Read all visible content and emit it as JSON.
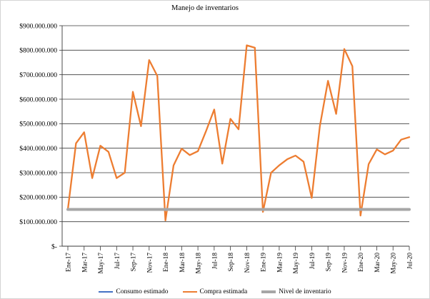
{
  "chart_data": {
    "type": "line",
    "title": "Manejo de inventarios",
    "xlabel": "",
    "ylabel": "",
    "ylim": [
      0,
      900000000
    ],
    "grid": "horizontal",
    "legend_position": "bottom",
    "x": [
      "Ene-17",
      "Feb-17",
      "Mar-17",
      "Abr-17",
      "May-17",
      "Jun-17",
      "Jul-17",
      "Ago-17",
      "Sep-17",
      "Oct-17",
      "Nov-17",
      "Dic-17",
      "Ene-18",
      "Feb-18",
      "Mar-18",
      "Abr-18",
      "May-18",
      "Jun-18",
      "Jul-18",
      "Ago-18",
      "Sep-18",
      "Oct-18",
      "Nov-18",
      "Dic-18",
      "Ene-19",
      "Feb-19",
      "Mar-19",
      "Abr-19",
      "May-19",
      "Jun-19",
      "Jul-19",
      "Ago-19",
      "Sep-19",
      "Oct-19",
      "Nov-19",
      "Dic-19",
      "Ene-20",
      "Feb-20",
      "Mar-20",
      "Abr-20",
      "May-20",
      "Jun-20",
      "Jul-20"
    ],
    "x_tick_labels": [
      "Ene-17",
      "Mar-17",
      "May-17",
      "Jul-17",
      "Sep-17",
      "Nov-17",
      "Ene-18",
      "Mar-18",
      "May-18",
      "Jul-18",
      "Sep-18",
      "Nov-18",
      "Ene-19",
      "Mar-19",
      "May-19",
      "Jul-19",
      "Sep-19",
      "Nov-19",
      "Ene-20",
      "Mar-20",
      "May-20",
      "Jul-20"
    ],
    "y_ticks": [
      {
        "label": "$900.000.000",
        "value": 900000000
      },
      {
        "label": "$800.000.000",
        "value": 800000000
      },
      {
        "label": "$700.000.000",
        "value": 700000000
      },
      {
        "label": "$600.000.000",
        "value": 600000000
      },
      {
        "label": "$500.000.000",
        "value": 500000000
      },
      {
        "label": "$400.000.000",
        "value": 400000000
      },
      {
        "label": "$300.000.000",
        "value": 300000000
      },
      {
        "label": "$200.000.000",
        "value": 200000000
      },
      {
        "label": "$100.000.000",
        "value": 100000000
      },
      {
        "label": "$-",
        "value": 0
      }
    ],
    "series": [
      {
        "name": "Consumo estimado",
        "color": "#4472C4",
        "width": 2,
        "values": [
          150000000,
          150000000,
          150000000,
          150000000,
          150000000,
          150000000,
          150000000,
          150000000,
          150000000,
          150000000,
          150000000,
          150000000,
          150000000,
          150000000,
          150000000,
          150000000,
          150000000,
          150000000,
          150000000,
          150000000,
          150000000,
          150000000,
          150000000,
          150000000,
          150000000,
          150000000,
          150000000,
          150000000,
          150000000,
          150000000,
          150000000,
          150000000,
          150000000,
          150000000,
          150000000,
          150000000,
          150000000,
          150000000,
          150000000,
          150000000,
          150000000,
          150000000,
          150000000
        ]
      },
      {
        "name": "Compra estimada",
        "color": "#ED7D31",
        "width": 2.3,
        "values": [
          150000000,
          420000000,
          465000000,
          278000000,
          410000000,
          385000000,
          278000000,
          300000000,
          630000000,
          490000000,
          760000000,
          695000000,
          105000000,
          330000000,
          398000000,
          372000000,
          388000000,
          470000000,
          558000000,
          337000000,
          520000000,
          477000000,
          820000000,
          810000000,
          140000000,
          300000000,
          330000000,
          355000000,
          370000000,
          345000000,
          197000000,
          490000000,
          675000000,
          540000000,
          805000000,
          735000000,
          125000000,
          335000000,
          395000000,
          375000000,
          390000000,
          435000000,
          445000000
        ]
      },
      {
        "name": "Nivel de inventario",
        "color": "#A6A6A6",
        "width": 4,
        "values": [
          150000000,
          150000000,
          150000000,
          150000000,
          150000000,
          150000000,
          150000000,
          150000000,
          150000000,
          150000000,
          150000000,
          150000000,
          150000000,
          150000000,
          150000000,
          150000000,
          150000000,
          150000000,
          150000000,
          150000000,
          150000000,
          150000000,
          150000000,
          150000000,
          150000000,
          150000000,
          150000000,
          150000000,
          150000000,
          150000000,
          150000000,
          150000000,
          150000000,
          150000000,
          150000000,
          150000000,
          150000000,
          150000000,
          150000000,
          150000000,
          150000000,
          150000000,
          150000000
        ]
      }
    ]
  }
}
